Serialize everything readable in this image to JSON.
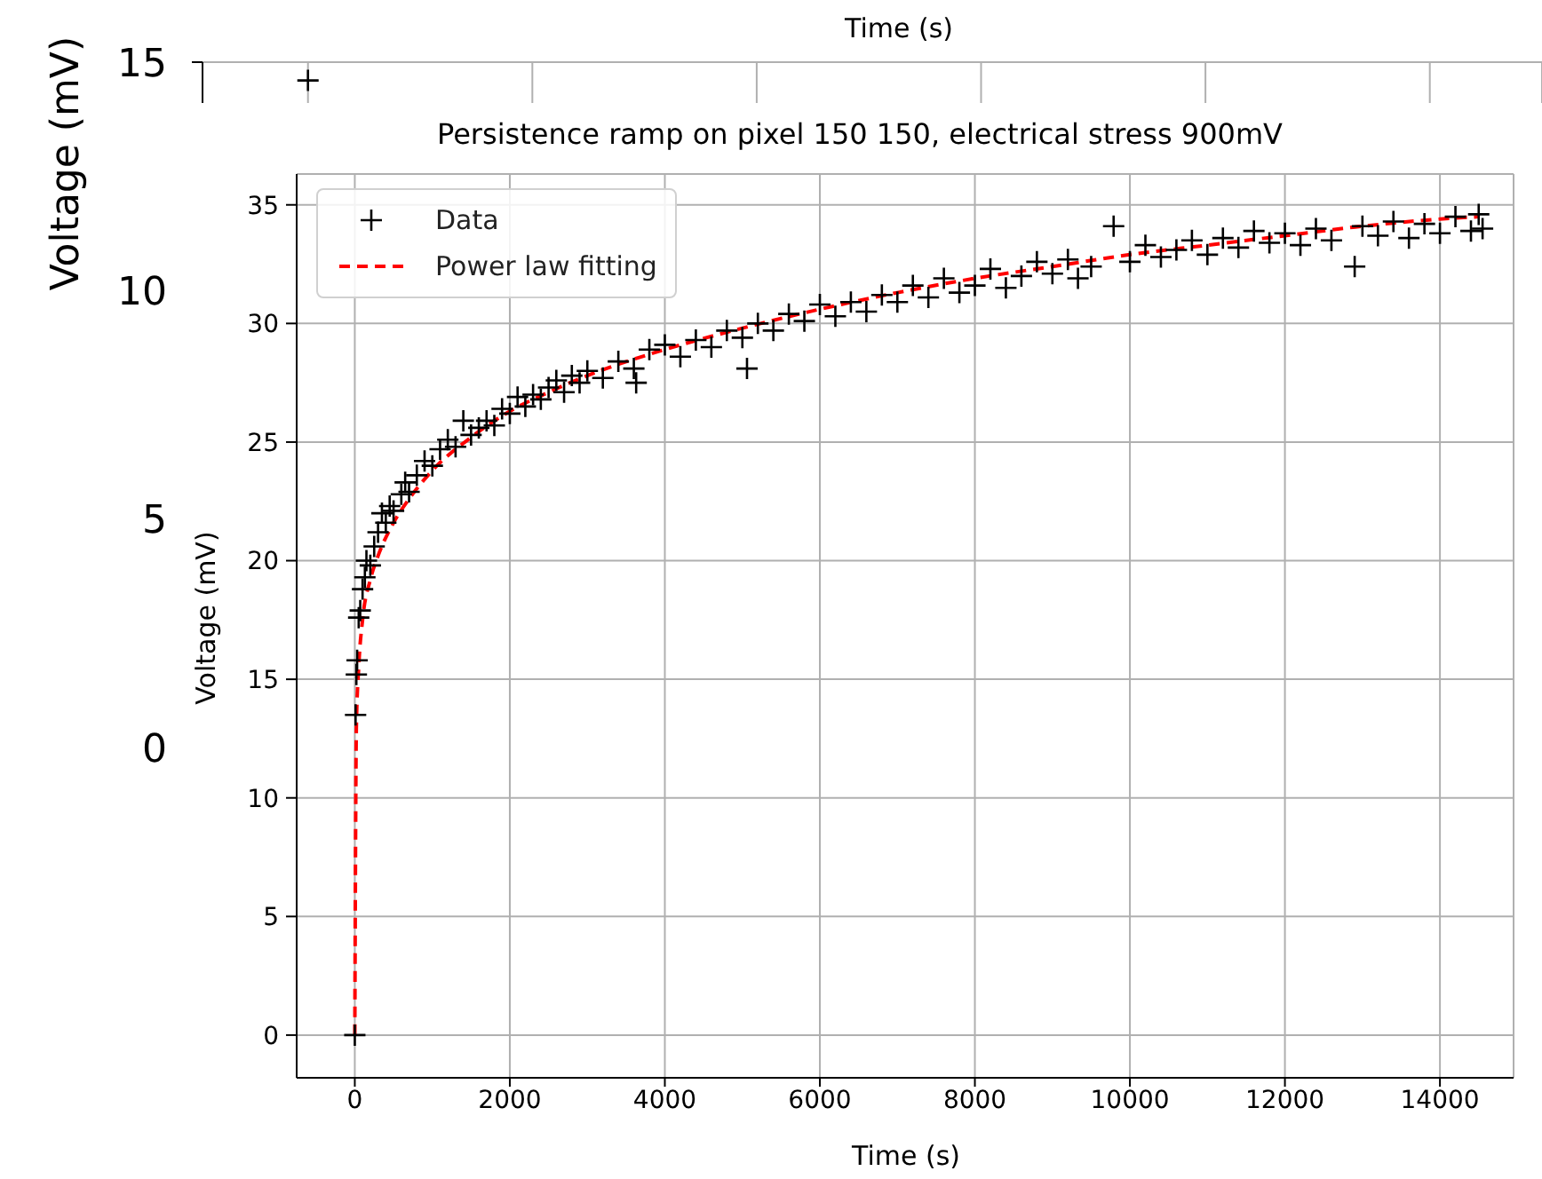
{
  "chart_data": [
    {
      "type": "scatter",
      "xlabel": "Time (s)",
      "ylabel": "Voltage (mV)",
      "categories": [
        null,
        null,
        null,
        null,
        null,
        null
      ],
      "ylim": [
        0,
        15
      ],
      "yticks": [
        0,
        5,
        10,
        15
      ],
      "grid": "x",
      "series": [
        {
          "color": "#000000",
          "marker": "cross",
          "values": [
            14.6,
            null,
            null,
            null,
            null,
            null
          ]
        }
      ]
    },
    {
      "type": "scatter",
      "title": "Persistence ramp on pixel 150 150, electrical stress 900mV",
      "xlabel": "Time (s)",
      "ylabel": "Voltage (mV)",
      "xlim": [
        -750,
        14950
      ],
      "xticks": [
        0,
        2000,
        4000,
        6000,
        8000,
        10000,
        12000,
        14000
      ],
      "ylim": [
        -1.8,
        36.3
      ],
      "yticks": [
        0,
        5,
        10,
        15,
        20,
        25,
        30,
        35
      ],
      "grid": true,
      "legend": "top left",
      "series": [
        {
          "name": "Data",
          "color": "#000000",
          "marker": "cross",
          "x": [
            0,
            10,
            20,
            30,
            50,
            70,
            100,
            130,
            150,
            200,
            250,
            300,
            350,
            400,
            450,
            500,
            600,
            650,
            700,
            800,
            900,
            1000,
            1100,
            1200,
            1300,
            1400,
            1500,
            1600,
            1700,
            1800,
            1900,
            2000,
            2100,
            2200,
            2300,
            2400,
            2500,
            2600,
            2700,
            2800,
            2900,
            3000,
            3200,
            3400,
            3600,
            3630,
            3800,
            4000,
            4200,
            4400,
            4600,
            4800,
            5000,
            5060,
            5200,
            5400,
            5600,
            5800,
            6000,
            6200,
            6400,
            6600,
            6800,
            7000,
            7200,
            7400,
            7600,
            7800,
            8000,
            8200,
            8400,
            8600,
            8800,
            9000,
            9200,
            9330,
            9500,
            9790,
            10000,
            10200,
            10400,
            10600,
            10800,
            11000,
            11200,
            11400,
            11600,
            11800,
            12000,
            12200,
            12400,
            12600,
            12900,
            13000,
            13200,
            13400,
            13600,
            13800,
            14000,
            14200,
            14400,
            14500,
            14550
          ],
          "values": [
            0,
            13.5,
            15.2,
            15.8,
            17.6,
            17.9,
            18.8,
            19.3,
            20.0,
            19.8,
            20.6,
            21.2,
            22.0,
            21.6,
            22.3,
            22.1,
            22.8,
            23.3,
            22.9,
            23.6,
            24.2,
            24.0,
            24.7,
            25.1,
            24.8,
            25.9,
            25.3,
            25.6,
            25.9,
            25.7,
            26.4,
            26.2,
            26.9,
            26.5,
            27.0,
            26.8,
            27.3,
            27.6,
            27.1,
            27.8,
            27.5,
            28.0,
            27.7,
            28.4,
            28.1,
            27.5,
            28.9,
            29.1,
            28.6,
            29.3,
            29.0,
            29.7,
            29.4,
            28.1,
            30.0,
            29.7,
            30.4,
            30.1,
            30.8,
            30.3,
            30.9,
            30.5,
            31.2,
            30.9,
            31.6,
            31.1,
            31.9,
            31.3,
            31.6,
            32.3,
            31.5,
            32.0,
            32.6,
            32.1,
            32.7,
            31.9,
            32.4,
            34.1,
            32.6,
            33.3,
            32.8,
            33.1,
            33.5,
            32.9,
            33.6,
            33.2,
            33.9,
            33.4,
            33.8,
            33.3,
            34.0,
            33.5,
            32.4,
            34.1,
            33.7,
            34.3,
            33.6,
            34.2,
            33.8,
            34.5,
            33.9,
            34.6,
            34.0
          ]
        },
        {
          "name": "Power law fitting",
          "type": "line",
          "color": "#ff0000",
          "line_style": "dashed",
          "marker": "none",
          "x": [
            0,
            20,
            50,
            100,
            200,
            300,
            500,
            700,
            1000,
            1500,
            2000,
            2500,
            3000,
            4000,
            5000,
            6000,
            7000,
            8000,
            9000,
            10000,
            11000,
            12000,
            13000,
            14000,
            14500
          ],
          "values": [
            0,
            13,
            15.5,
            17.5,
            19.2,
            20.2,
            21.6,
            22.6,
            23.8,
            25.2,
            26.3,
            27.1,
            27.8,
            28.9,
            29.8,
            30.6,
            31.3,
            31.9,
            32.4,
            32.9,
            33.3,
            33.7,
            34.1,
            34.4,
            34.5
          ]
        }
      ]
    }
  ]
}
